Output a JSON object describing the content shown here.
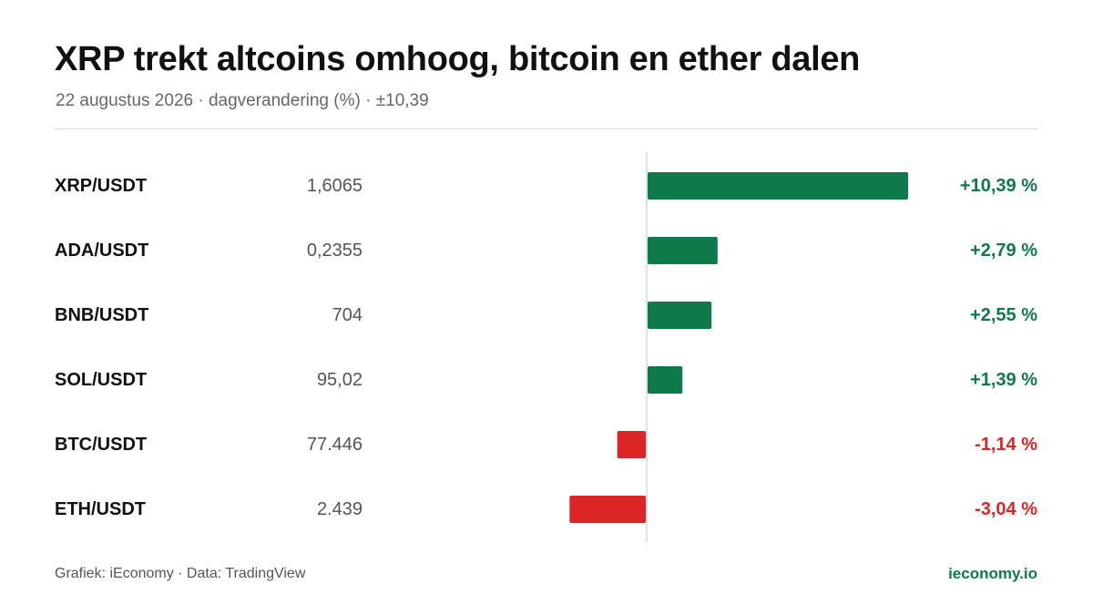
{
  "header": {
    "title": "XRP trekt altcoins omhoog, bitcoin en ether dalen",
    "subtitle": "22 augustus 2026 · dagverandering (%) · ±10,39"
  },
  "footer": {
    "credit": "Grafiek: iEconomy · Data: TradingView",
    "brand": "ieconomy.io"
  },
  "colors": {
    "positive": "#0e7a4c",
    "negative": "#dc2626",
    "axis": "#d9d9d9"
  },
  "chart_data": {
    "type": "bar",
    "orientation": "horizontal",
    "grid": false,
    "xlim": [
      -10.39,
      10.39
    ],
    "categories": [
      "XRP/USDT",
      "ADA/USDT",
      "BNB/USDT",
      "SOL/USDT",
      "BTC/USDT",
      "ETH/USDT"
    ],
    "prices": [
      "1,6065",
      "0,2355",
      "704",
      "95,02",
      "77.446",
      "2.439"
    ],
    "values": [
      10.39,
      2.79,
      2.55,
      1.39,
      -1.14,
      -3.04
    ],
    "value_labels": [
      "+10,39 %",
      "+2,79 %",
      "+2,55 %",
      "+1,39 %",
      "-1,14 %",
      "-3,04 %"
    ]
  }
}
